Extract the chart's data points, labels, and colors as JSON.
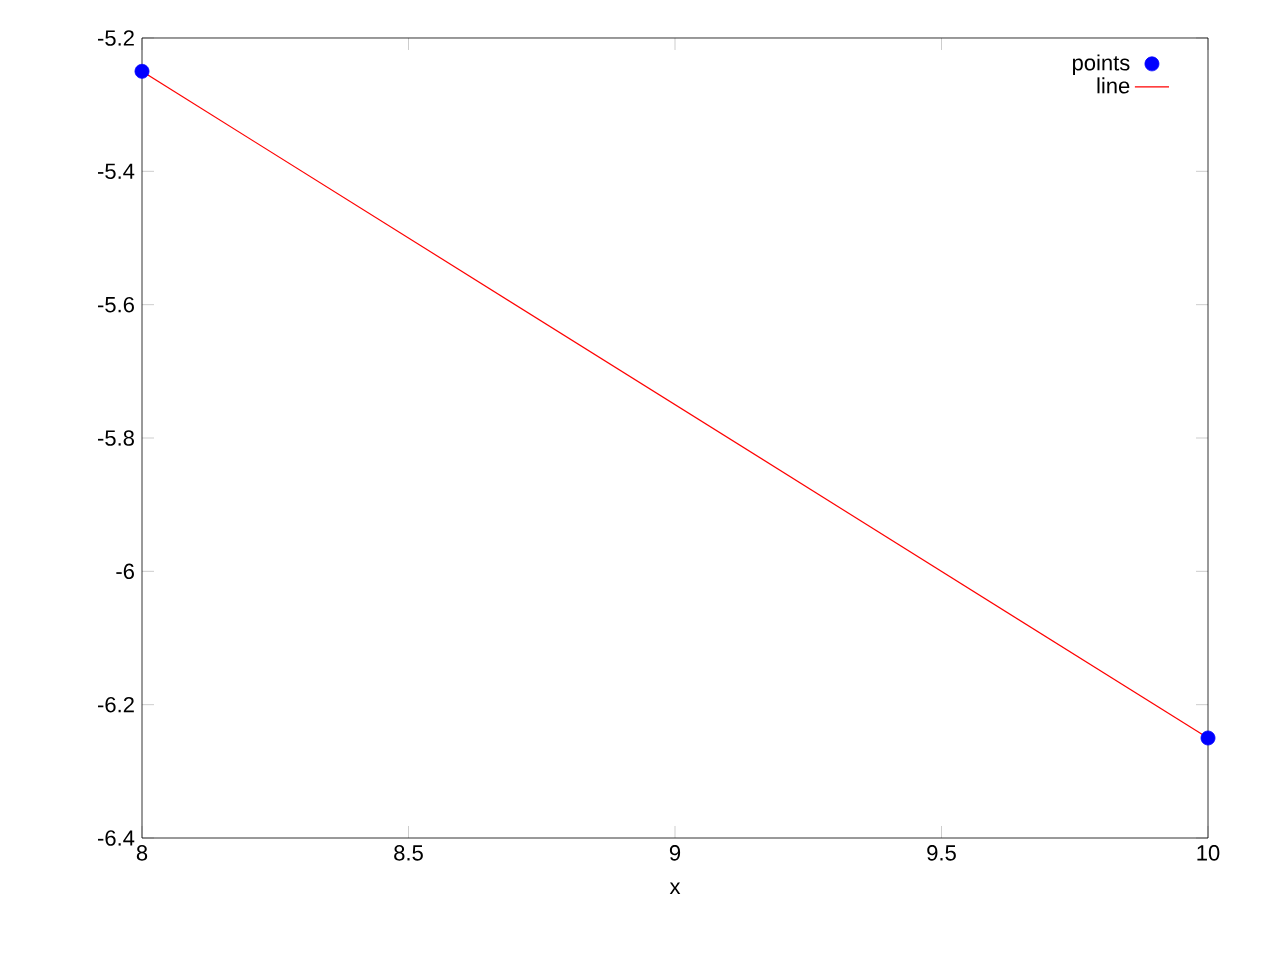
{
  "chart_data": {
    "type": "scatter",
    "xlabel": "x",
    "x": [
      8,
      10
    ],
    "series": [
      {
        "name": "points",
        "color": "#0000ff",
        "marker": "circle",
        "values": [
          -5.25,
          -6.25
        ]
      },
      {
        "name": "line",
        "type": "line",
        "color": "#ff0000",
        "marker": "none",
        "values": [
          -5.25,
          -6.25
        ]
      }
    ],
    "xlim": [
      8,
      10
    ],
    "xticks": [
      8,
      8.5,
      9,
      9.5,
      10
    ],
    "ylim": [
      -6.4,
      -5.2
    ],
    "yticks": [
      -6.4,
      -6.2,
      -6,
      -5.8,
      -5.6,
      -5.4,
      -5.2
    ],
    "legend": "top right",
    "grid": false
  }
}
